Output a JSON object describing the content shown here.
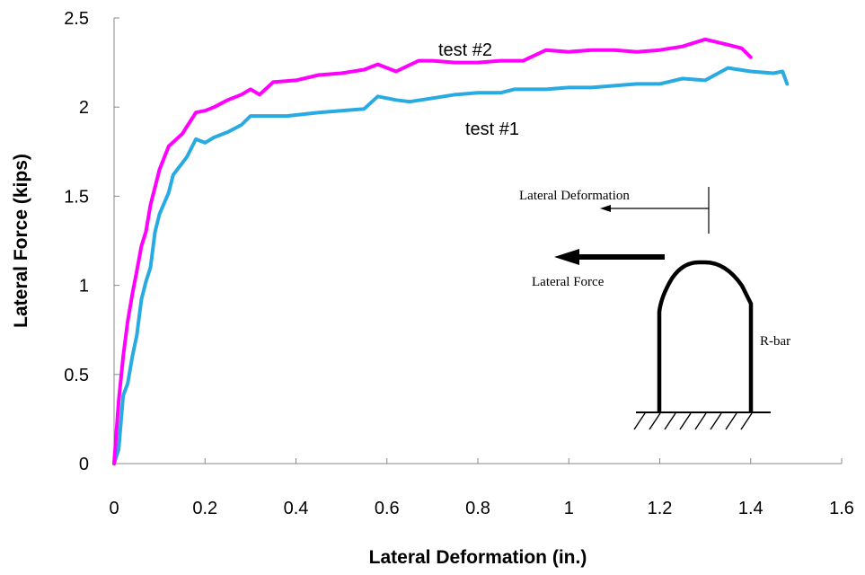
{
  "chart_data": {
    "type": "line",
    "xlabel": "Lateral Deformation (in.)",
    "ylabel": "Lateral  Force (kips)",
    "xlim": [
      0,
      1.6
    ],
    "ylim": [
      0,
      2.5
    ],
    "x_ticks": [
      "0",
      "0.2",
      "0.4",
      "0.6",
      "0.8",
      "1",
      "1.2",
      "1.4",
      "1.6"
    ],
    "y_ticks": [
      "0",
      "0.5",
      "1",
      "1.5",
      "2",
      "2.5"
    ],
    "grid": false,
    "series": [
      {
        "name": "test #1",
        "color": "#29ABE2",
        "points": [
          [
            0.0,
            0.0
          ],
          [
            0.01,
            0.08
          ],
          [
            0.02,
            0.38
          ],
          [
            0.03,
            0.45
          ],
          [
            0.04,
            0.6
          ],
          [
            0.05,
            0.72
          ],
          [
            0.06,
            0.92
          ],
          [
            0.07,
            1.02
          ],
          [
            0.08,
            1.1
          ],
          [
            0.09,
            1.3
          ],
          [
            0.1,
            1.4
          ],
          [
            0.12,
            1.52
          ],
          [
            0.13,
            1.62
          ],
          [
            0.16,
            1.72
          ],
          [
            0.18,
            1.82
          ],
          [
            0.2,
            1.8
          ],
          [
            0.22,
            1.83
          ],
          [
            0.25,
            1.86
          ],
          [
            0.28,
            1.9
          ],
          [
            0.3,
            1.95
          ],
          [
            0.35,
            1.95
          ],
          [
            0.38,
            1.95
          ],
          [
            0.45,
            1.97
          ],
          [
            0.5,
            1.98
          ],
          [
            0.55,
            1.99
          ],
          [
            0.58,
            2.06
          ],
          [
            0.62,
            2.04
          ],
          [
            0.65,
            2.03
          ],
          [
            0.7,
            2.05
          ],
          [
            0.75,
            2.07
          ],
          [
            0.8,
            2.08
          ],
          [
            0.85,
            2.08
          ],
          [
            0.88,
            2.1
          ],
          [
            0.95,
            2.1
          ],
          [
            1.0,
            2.11
          ],
          [
            1.05,
            2.11
          ],
          [
            1.1,
            2.12
          ],
          [
            1.15,
            2.13
          ],
          [
            1.2,
            2.13
          ],
          [
            1.25,
            2.16
          ],
          [
            1.3,
            2.15
          ],
          [
            1.35,
            2.22
          ],
          [
            1.4,
            2.2
          ],
          [
            1.45,
            2.19
          ],
          [
            1.47,
            2.2
          ],
          [
            1.48,
            2.13
          ]
        ]
      },
      {
        "name": "test #2",
        "color": "#FF00FF",
        "points": [
          [
            0.0,
            0.0
          ],
          [
            0.01,
            0.35
          ],
          [
            0.02,
            0.6
          ],
          [
            0.03,
            0.8
          ],
          [
            0.04,
            0.95
          ],
          [
            0.05,
            1.08
          ],
          [
            0.06,
            1.22
          ],
          [
            0.07,
            1.3
          ],
          [
            0.08,
            1.45
          ],
          [
            0.1,
            1.65
          ],
          [
            0.12,
            1.78
          ],
          [
            0.15,
            1.85
          ],
          [
            0.18,
            1.97
          ],
          [
            0.2,
            1.98
          ],
          [
            0.22,
            2.0
          ],
          [
            0.25,
            2.04
          ],
          [
            0.28,
            2.07
          ],
          [
            0.3,
            2.1
          ],
          [
            0.32,
            2.07
          ],
          [
            0.35,
            2.14
          ],
          [
            0.4,
            2.15
          ],
          [
            0.45,
            2.18
          ],
          [
            0.5,
            2.19
          ],
          [
            0.55,
            2.21
          ],
          [
            0.58,
            2.24
          ],
          [
            0.62,
            2.2
          ],
          [
            0.67,
            2.26
          ],
          [
            0.7,
            2.26
          ],
          [
            0.75,
            2.25
          ],
          [
            0.8,
            2.25
          ],
          [
            0.85,
            2.26
          ],
          [
            0.9,
            2.26
          ],
          [
            0.95,
            2.32
          ],
          [
            1.0,
            2.31
          ],
          [
            1.05,
            2.32
          ],
          [
            1.1,
            2.32
          ],
          [
            1.15,
            2.31
          ],
          [
            1.2,
            2.32
          ],
          [
            1.25,
            2.34
          ],
          [
            1.3,
            2.38
          ],
          [
            1.35,
            2.35
          ],
          [
            1.38,
            2.33
          ],
          [
            1.4,
            2.28
          ]
        ]
      }
    ],
    "annotations": [
      "test #2",
      "test #1"
    ]
  },
  "diagram": {
    "deformation_label": "Lateral Deformation",
    "force_label": "Lateral Force",
    "bar_label": "R-bar"
  }
}
